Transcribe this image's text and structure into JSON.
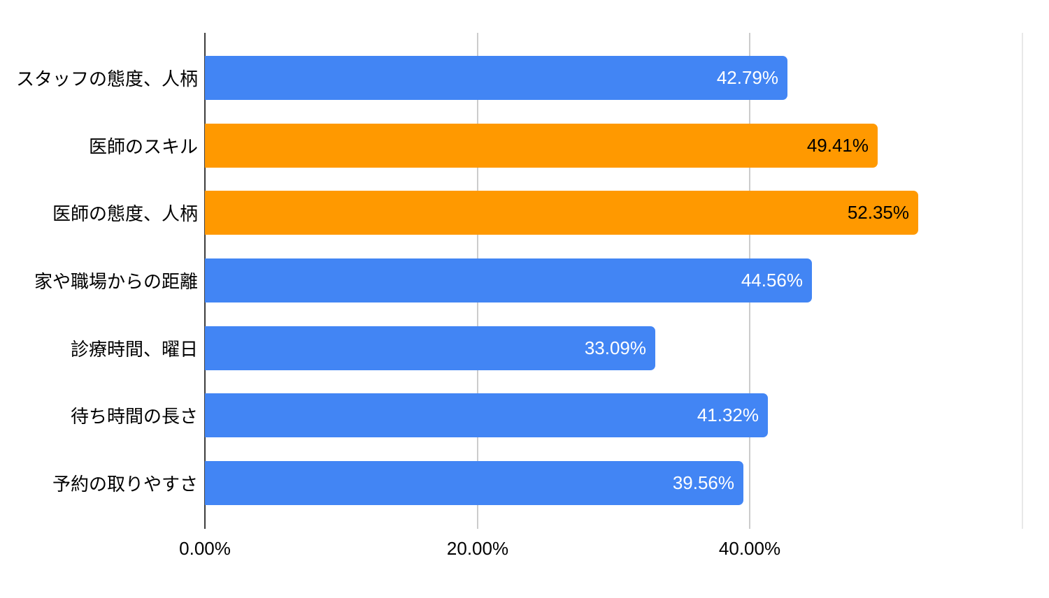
{
  "chart_data": {
    "type": "bar",
    "orientation": "horizontal",
    "title": "",
    "xlabel": "",
    "ylabel": "",
    "legend": "none",
    "grid": true,
    "background": "#ffffff",
    "categories": [
      "スタッフの態度、人柄",
      "医師のスキル",
      "医師の態度、人柄",
      "家や職場からの距離",
      "診療時間、曜日",
      "待ち時間の長さ",
      "予約の取りやすさ"
    ],
    "values": [
      42.79,
      49.41,
      52.35,
      44.56,
      33.09,
      41.32,
      39.56
    ],
    "bars": [
      {
        "label": "スタッフの態度、人柄",
        "value": 42.79,
        "value_label": "42.79%",
        "color": "blue"
      },
      {
        "label": "医師のスキル",
        "value": 49.41,
        "value_label": "49.41%",
        "color": "orange"
      },
      {
        "label": "医師の態度、人柄",
        "value": 52.35,
        "value_label": "52.35%",
        "color": "orange"
      },
      {
        "label": "家や職場からの距離",
        "value": 44.56,
        "value_label": "44.56%",
        "color": "blue"
      },
      {
        "label": "診療時間、曜日",
        "value": 33.09,
        "value_label": "33.09%",
        "color": "blue"
      },
      {
        "label": "待ち時間の長さ",
        "value": 41.32,
        "value_label": "41.32%",
        "color": "blue"
      },
      {
        "label": "予約の取りやすさ",
        "value": 39.56,
        "value_label": "39.56%",
        "color": "blue"
      }
    ],
    "colors": {
      "blue": "#4285F4",
      "orange": "#FF9900"
    },
    "value_label_colors": {
      "blue": "#ffffff",
      "orange": "#000000"
    },
    "axis_color": "#3d3d3d",
    "x_axis": {
      "range": [
        0,
        62
      ],
      "ticks": [
        {
          "label": "0.00%",
          "value": 0
        },
        {
          "label": "20.00%",
          "value": 20
        },
        {
          "label": "40.00%",
          "value": 40
        }
      ],
      "gridlines": [
        {
          "value": 20,
          "color": "#cccccc"
        },
        {
          "value": 40,
          "color": "#cccccc"
        },
        {
          "value": 60,
          "color": "#e8e8e8"
        }
      ]
    }
  }
}
